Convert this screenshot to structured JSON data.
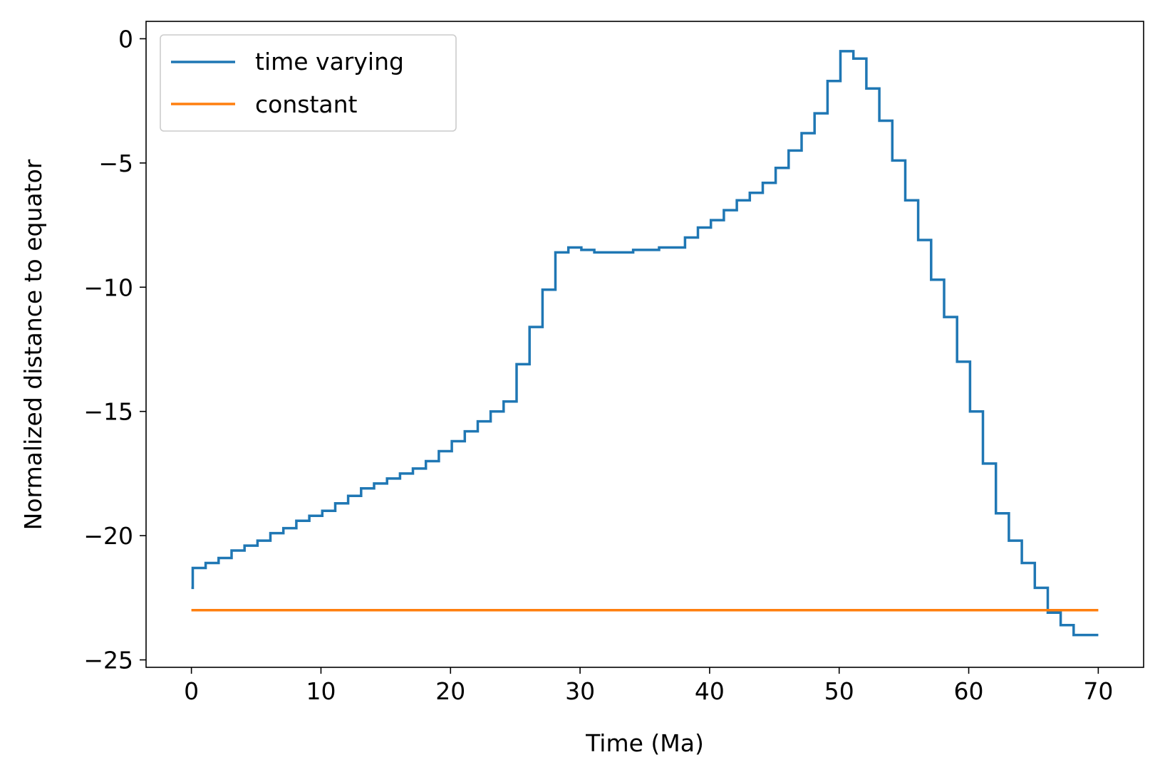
{
  "chart_data": {
    "type": "line",
    "title": "",
    "xlabel": "Time (Ma)",
    "ylabel": "Normalized distance to equator",
    "xlim": [
      -3.5,
      73.5
    ],
    "ylim": [
      -25.3,
      0.7
    ],
    "xticks": [
      0,
      10,
      20,
      30,
      40,
      50,
      60,
      70
    ],
    "xtick_labels": [
      "0",
      "10",
      "20",
      "30",
      "40",
      "50",
      "60",
      "70"
    ],
    "yticks": [
      0,
      -5,
      -10,
      -15,
      -20,
      -25
    ],
    "ytick_labels": [
      "0",
      "−5",
      "−10",
      "−15",
      "−20",
      "−25"
    ],
    "grid": false,
    "legend_position": "upper-left",
    "series": [
      {
        "name": "time varying",
        "color": "#1f77b4",
        "step": true,
        "x": [
          0,
          1,
          2,
          3,
          4,
          5,
          6,
          7,
          8,
          9,
          10,
          11,
          12,
          13,
          14,
          15,
          16,
          17,
          18,
          19,
          20,
          21,
          22,
          23,
          24,
          25,
          26,
          27,
          28,
          29,
          30,
          31,
          32,
          33,
          34,
          35,
          36,
          37,
          38,
          39,
          40,
          41,
          42,
          43,
          44,
          45,
          46,
          47,
          48,
          49,
          50,
          51,
          52,
          53,
          54,
          55,
          56,
          57,
          58,
          59,
          60,
          61,
          62,
          63,
          64,
          65,
          66,
          67,
          68,
          69,
          70
        ],
        "y": [
          -22.1,
          -21.3,
          -21.1,
          -20.9,
          -20.6,
          -20.4,
          -20.2,
          -19.9,
          -19.7,
          -19.4,
          -19.2,
          -19.0,
          -18.7,
          -18.4,
          -18.1,
          -17.9,
          -17.7,
          -17.5,
          -17.3,
          -17.0,
          -16.6,
          -16.2,
          -15.8,
          -15.4,
          -15.0,
          -14.6,
          -13.1,
          -11.6,
          -10.1,
          -8.6,
          -8.4,
          -8.5,
          -8.6,
          -8.6,
          -8.6,
          -8.5,
          -8.5,
          -8.4,
          -8.4,
          -8.0,
          -7.6,
          -7.3,
          -6.9,
          -6.5,
          -6.2,
          -5.8,
          -5.2,
          -4.5,
          -3.8,
          -3.0,
          -1.7,
          -0.5,
          -0.8,
          -2.0,
          -3.3,
          -4.9,
          -6.5,
          -8.1,
          -9.7,
          -11.2,
          -13.0,
          -15.0,
          -17.1,
          -19.1,
          -20.2,
          -21.1,
          -22.1,
          -23.1,
          -23.6,
          -24.0,
          -24.0
        ]
      },
      {
        "name": "constant",
        "color": "#ff7f0e",
        "step": false,
        "x": [
          0,
          70
        ],
        "y": [
          -23.0,
          -23.0
        ]
      }
    ]
  }
}
